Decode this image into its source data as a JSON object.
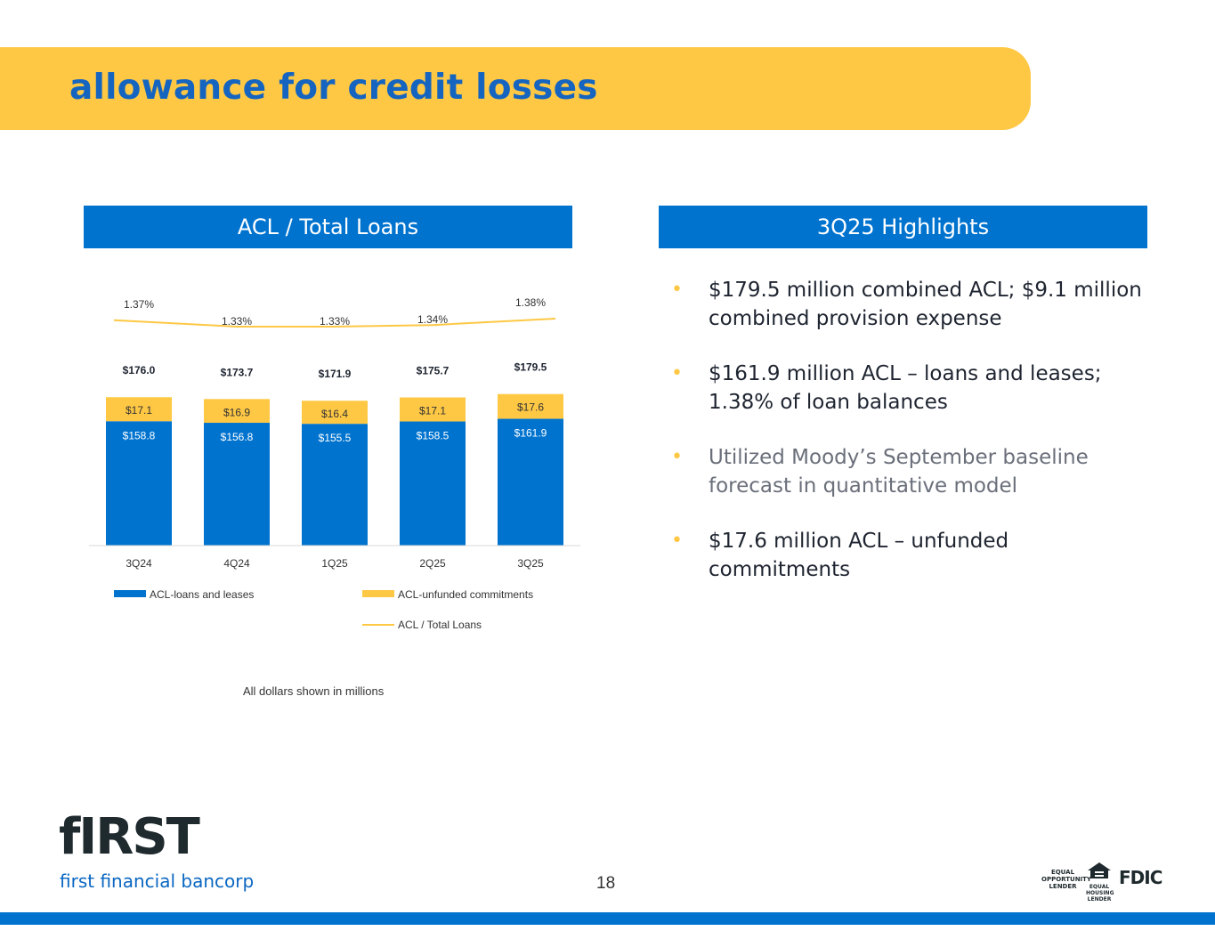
{
  "header": {
    "title": "allowance for credit losses"
  },
  "left_panel": {
    "title": "ACL / Total Loans"
  },
  "right_panel": {
    "title": "3Q25 Highlights"
  },
  "highlights": [
    {
      "text": "$179.5 million combined ACL; $9.1 million combined provision expense"
    },
    {
      "text": "$161.9 million ACL – loans and leases; 1.38% of loan balances"
    },
    {
      "text": "Utilized Moody’s September baseline forecast in quantitative model"
    },
    {
      "text": "$17.6 million ACL – unfunded commitments"
    }
  ],
  "footnote": "All dollars shown in millions",
  "footer": {
    "logo_word": "fIRST",
    "logo_sub": "first financial bancorp",
    "page_number": "18",
    "badge_equal_opportunity": "EQUAL OPPORTUNITY LENDER",
    "badge_equal_housing": "EQUAL HOUSING LENDER",
    "badge_fdic": "FDIC"
  },
  "colors": {
    "blue": "#0073CF",
    "yellow": "#FEC845",
    "title_blue": "#1565C0"
  },
  "chart_data": {
    "type": "bar",
    "stacked": true,
    "title": "ACL / Total Loans",
    "categories": [
      "3Q24",
      "4Q24",
      "1Q25",
      "2Q25",
      "3Q25"
    ],
    "series": [
      {
        "name": "ACL-loans and leases",
        "values": [
          158.8,
          156.8,
          155.5,
          158.5,
          161.9
        ],
        "labels": [
          "$158.8",
          "$156.8",
          "$155.5",
          "$158.5",
          "$161.9"
        ],
        "color": "#0073CF"
      },
      {
        "name": "ACL-unfunded commitments",
        "values": [
          17.1,
          16.9,
          16.4,
          17.1,
          17.6
        ],
        "labels": [
          "$17.1",
          "$16.9",
          "$16.4",
          "$17.1",
          "$17.6"
        ],
        "color": "#FEC845"
      }
    ],
    "totals": [
      "$176.0",
      "$173.7",
      "$171.9",
      "$175.7",
      "$179.5"
    ],
    "line": {
      "name": "ACL / Total Loans",
      "values": [
        1.37,
        1.33,
        1.33,
        1.34,
        1.38
      ],
      "labels": [
        "1.37%",
        "1.33%",
        "1.33%",
        "1.34%",
        "1.38%"
      ],
      "color": "#FEC845"
    },
    "legend": [
      "ACL-loans and leases",
      "ACL-unfunded commitments",
      "ACL / Total Loans"
    ],
    "legend_position": "bottom"
  }
}
